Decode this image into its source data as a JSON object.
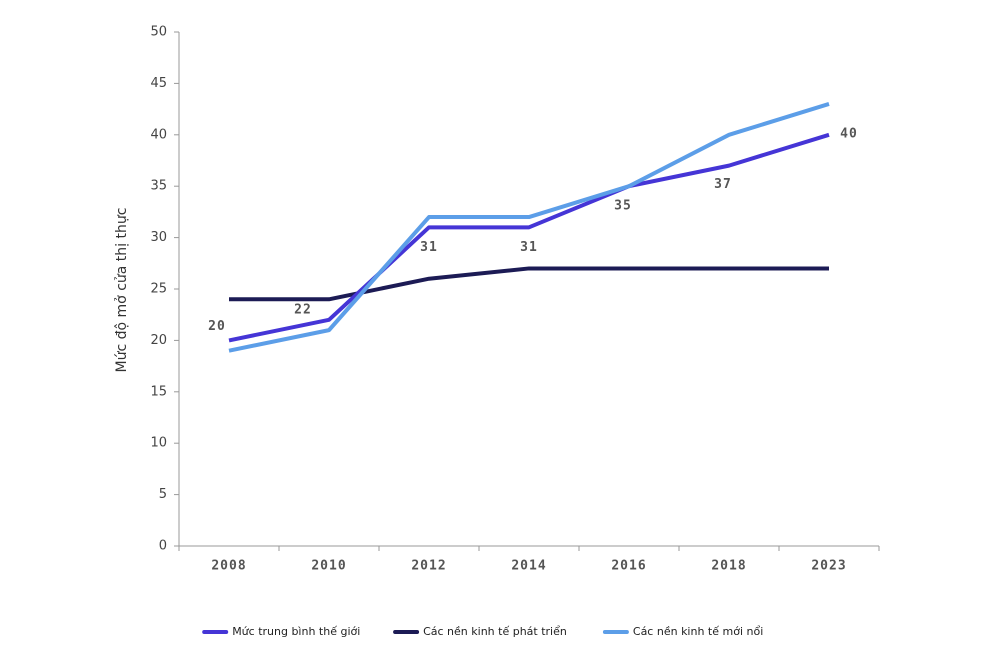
{
  "chart_data": {
    "type": "line",
    "y_label": "Mức độ mở cửa thị thực",
    "categories": [
      "2008",
      "2010",
      "2012",
      "2014",
      "2016",
      "2018",
      "2023"
    ],
    "series": [
      {
        "name": "Mức trung bình thế giới",
        "color": "#4535d6",
        "values": [
          20,
          22,
          31,
          31,
          35,
          37,
          40
        ],
        "show_labels": true
      },
      {
        "name": "Các nền kinh tế phát triển",
        "color": "#1c1b55",
        "values": [
          24,
          24,
          26,
          27,
          27,
          27,
          27
        ],
        "show_labels": false
      },
      {
        "name": "Các nền kinh tế mới nổi",
        "color": "#5c9ee8",
        "values": [
          19,
          21,
          32,
          32,
          35,
          40,
          43
        ],
        "show_labels": false
      }
    ],
    "ylim": [
      0,
      50
    ],
    "yticks": [
      0,
      5,
      10,
      15,
      20,
      25,
      30,
      35,
      40,
      45,
      50
    ],
    "legend": "bottom"
  }
}
